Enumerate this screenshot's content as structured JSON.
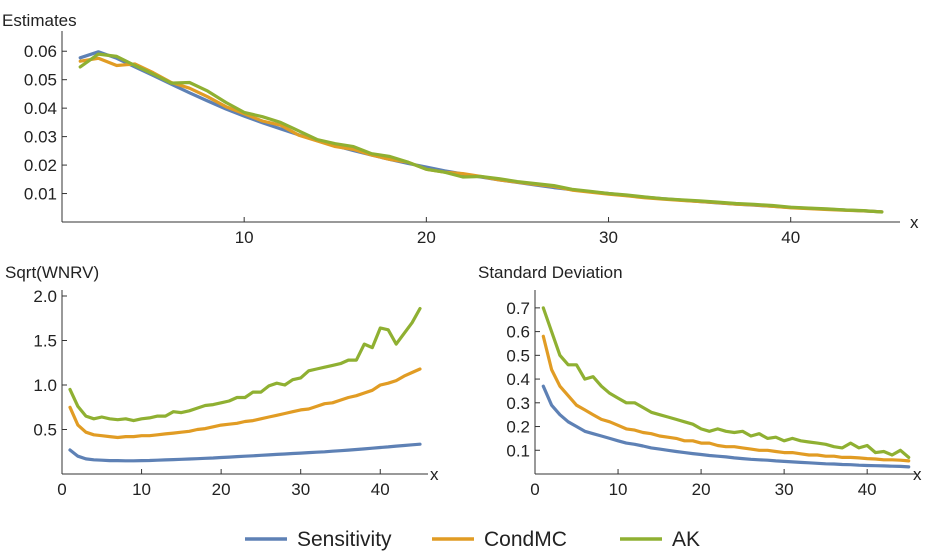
{
  "colors": {
    "Sensitivity": "#5E81B5",
    "CondMC": "#E19C24",
    "AK": "#8FB032"
  },
  "legend": [
    {
      "name": "Sensitivity",
      "color": "#5E81B5"
    },
    {
      "name": "CondMC",
      "color": "#E19C24"
    },
    {
      "name": "AK",
      "color": "#8FB032"
    }
  ],
  "chart_data": [
    {
      "type": "line",
      "title": "Estimates",
      "xlabel": "x",
      "ylabel": "",
      "xlim": [
        0,
        46
      ],
      "ylim": [
        0,
        0.065
      ],
      "xticks": [
        10,
        20,
        30,
        40
      ],
      "yticks": [
        0.01,
        0.02,
        0.03,
        0.04,
        0.05,
        0.06
      ],
      "ytick_labels": [
        "0.01",
        "0.02",
        "0.03",
        "0.04",
        "0.05",
        "0.06"
      ],
      "x": [
        1,
        2,
        3,
        4,
        5,
        6,
        7,
        8,
        9,
        10,
        11,
        12,
        13,
        14,
        15,
        16,
        17,
        18,
        19,
        20,
        21,
        22,
        23,
        24,
        25,
        26,
        27,
        28,
        29,
        30,
        31,
        32,
        33,
        34,
        35,
        36,
        37,
        38,
        39,
        40,
        41,
        42,
        43,
        44,
        45
      ],
      "series": [
        {
          "name": "Sensitivity",
          "values": [
            0.0577,
            0.0598,
            0.0575,
            0.0545,
            0.0515,
            0.0484,
            0.0454,
            0.0425,
            0.0397,
            0.0372,
            0.0349,
            0.0327,
            0.0306,
            0.0286,
            0.0268,
            0.0251,
            0.0235,
            0.022,
            0.0206,
            0.0193,
            0.018,
            0.0169,
            0.0158,
            0.0148,
            0.0139,
            0.013,
            0.0121,
            0.0114,
            0.0106,
            0.01,
            0.0093,
            0.0087,
            0.0082,
            0.0077,
            0.0072,
            0.0067,
            0.0063,
            0.0059,
            0.0055,
            0.0051,
            0.0048,
            0.0045,
            0.0042,
            0.0039,
            0.0036
          ]
        },
        {
          "name": "CondMC",
          "values": [
            0.0565,
            0.0575,
            0.055,
            0.0555,
            0.0525,
            0.049,
            0.047,
            0.044,
            0.0405,
            0.038,
            0.0355,
            0.034,
            0.0305,
            0.0285,
            0.0265,
            0.0255,
            0.0235,
            0.022,
            0.021,
            0.0185,
            0.0175,
            0.017,
            0.016,
            0.0148,
            0.014,
            0.0132,
            0.0125,
            0.0112,
            0.0105,
            0.0098,
            0.0092,
            0.0085,
            0.008,
            0.0076,
            0.0072,
            0.0068,
            0.0063,
            0.006,
            0.0055,
            0.005,
            0.0047,
            0.0044,
            0.0041,
            0.0039,
            0.0036
          ]
        },
        {
          "name": "AK",
          "values": [
            0.0545,
            0.059,
            0.0582,
            0.055,
            0.052,
            0.0488,
            0.049,
            0.046,
            0.042,
            0.0385,
            0.037,
            0.035,
            0.032,
            0.029,
            0.0275,
            0.0265,
            0.024,
            0.023,
            0.021,
            0.0185,
            0.0175,
            0.0158,
            0.016,
            0.0152,
            0.0142,
            0.0135,
            0.0128,
            0.0115,
            0.0108,
            0.01,
            0.0095,
            0.0088,
            0.0082,
            0.0078,
            0.0074,
            0.007,
            0.0065,
            0.0062,
            0.0058,
            0.0052,
            0.0049,
            0.0046,
            0.0042,
            0.004,
            0.0035
          ]
        }
      ]
    },
    {
      "type": "line",
      "title": "Sqrt(WNRV)",
      "xlabel": "x",
      "ylabel": "",
      "xlim": [
        0,
        46
      ],
      "ylim": [
        0,
        2.0
      ],
      "xticks": [
        0,
        10,
        20,
        30,
        40
      ],
      "yticks": [
        0.5,
        1.0,
        1.5,
        2.0
      ],
      "ytick_labels": [
        "0.5",
        "1.0",
        "1.5",
        "2.0"
      ],
      "x": [
        1,
        2,
        3,
        4,
        5,
        6,
        7,
        8,
        9,
        10,
        11,
        12,
        13,
        14,
        15,
        16,
        17,
        18,
        19,
        20,
        21,
        22,
        23,
        24,
        25,
        26,
        27,
        28,
        29,
        30,
        31,
        32,
        33,
        34,
        35,
        36,
        37,
        38,
        39,
        40,
        41,
        42,
        43,
        44,
        45
      ],
      "series": [
        {
          "name": "Sensitivity",
          "values": [
            0.27,
            0.2,
            0.17,
            0.16,
            0.155,
            0.15,
            0.15,
            0.148,
            0.148,
            0.15,
            0.152,
            0.155,
            0.158,
            0.162,
            0.165,
            0.168,
            0.172,
            0.176,
            0.18,
            0.185,
            0.19,
            0.195,
            0.2,
            0.205,
            0.21,
            0.215,
            0.22,
            0.225,
            0.23,
            0.235,
            0.24,
            0.245,
            0.25,
            0.256,
            0.262,
            0.268,
            0.275,
            0.282,
            0.29,
            0.298,
            0.305,
            0.313,
            0.32,
            0.328,
            0.335
          ]
        },
        {
          "name": "CondMC",
          "values": [
            0.75,
            0.55,
            0.47,
            0.44,
            0.43,
            0.42,
            0.41,
            0.42,
            0.42,
            0.43,
            0.43,
            0.44,
            0.45,
            0.46,
            0.47,
            0.48,
            0.5,
            0.51,
            0.53,
            0.55,
            0.56,
            0.57,
            0.59,
            0.6,
            0.62,
            0.64,
            0.66,
            0.68,
            0.7,
            0.72,
            0.73,
            0.76,
            0.79,
            0.8,
            0.83,
            0.86,
            0.88,
            0.91,
            0.94,
            1.0,
            1.02,
            1.05,
            1.1,
            1.14,
            1.18
          ]
        },
        {
          "name": "AK",
          "values": [
            0.95,
            0.76,
            0.65,
            0.62,
            0.64,
            0.62,
            0.61,
            0.62,
            0.6,
            0.62,
            0.63,
            0.65,
            0.65,
            0.7,
            0.69,
            0.71,
            0.74,
            0.77,
            0.78,
            0.8,
            0.82,
            0.86,
            0.86,
            0.92,
            0.92,
            0.99,
            1.02,
            1.0,
            1.06,
            1.08,
            1.16,
            1.18,
            1.2,
            1.22,
            1.24,
            1.28,
            1.28,
            1.46,
            1.42,
            1.64,
            1.62,
            1.46,
            1.58,
            1.7,
            1.86
          ]
        }
      ]
    },
    {
      "type": "line",
      "title": "Standard Deviation",
      "xlabel": "x",
      "ylabel": "",
      "xlim": [
        0,
        46
      ],
      "ylim": [
        0,
        0.75
      ],
      "xticks": [
        0,
        10,
        20,
        30,
        40
      ],
      "yticks": [
        0.1,
        0.2,
        0.3,
        0.4,
        0.5,
        0.6,
        0.7
      ],
      "ytick_labels": [
        "0.1",
        "0.2",
        "0.3",
        "0.4",
        "0.5",
        "0.6",
        "0.7"
      ],
      "x": [
        1,
        2,
        3,
        4,
        5,
        6,
        7,
        8,
        9,
        10,
        11,
        12,
        13,
        14,
        15,
        16,
        17,
        18,
        19,
        20,
        21,
        22,
        23,
        24,
        25,
        26,
        27,
        28,
        29,
        30,
        31,
        32,
        33,
        34,
        35,
        36,
        37,
        38,
        39,
        40,
        41,
        42,
        43,
        44,
        45
      ],
      "series": [
        {
          "name": "Sensitivity",
          "values": [
            0.37,
            0.29,
            0.25,
            0.22,
            0.2,
            0.18,
            0.17,
            0.16,
            0.15,
            0.14,
            0.13,
            0.125,
            0.118,
            0.11,
            0.105,
            0.1,
            0.095,
            0.09,
            0.086,
            0.082,
            0.078,
            0.075,
            0.072,
            0.068,
            0.065,
            0.062,
            0.06,
            0.058,
            0.055,
            0.053,
            0.051,
            0.049,
            0.047,
            0.045,
            0.043,
            0.042,
            0.04,
            0.039,
            0.037,
            0.036,
            0.035,
            0.034,
            0.033,
            0.032,
            0.03
          ]
        },
        {
          "name": "CondMC",
          "values": [
            0.58,
            0.44,
            0.37,
            0.33,
            0.29,
            0.27,
            0.25,
            0.23,
            0.22,
            0.205,
            0.19,
            0.185,
            0.175,
            0.17,
            0.16,
            0.155,
            0.15,
            0.14,
            0.14,
            0.13,
            0.13,
            0.12,
            0.115,
            0.115,
            0.11,
            0.105,
            0.1,
            0.1,
            0.095,
            0.09,
            0.09,
            0.085,
            0.08,
            0.08,
            0.075,
            0.075,
            0.07,
            0.07,
            0.068,
            0.065,
            0.063,
            0.06,
            0.06,
            0.058,
            0.055
          ]
        },
        {
          "name": "AK",
          "values": [
            0.7,
            0.6,
            0.5,
            0.46,
            0.46,
            0.4,
            0.41,
            0.37,
            0.34,
            0.32,
            0.3,
            0.3,
            0.28,
            0.26,
            0.25,
            0.24,
            0.23,
            0.22,
            0.21,
            0.19,
            0.18,
            0.19,
            0.18,
            0.175,
            0.18,
            0.16,
            0.17,
            0.15,
            0.155,
            0.14,
            0.15,
            0.14,
            0.135,
            0.13,
            0.125,
            0.115,
            0.11,
            0.13,
            0.11,
            0.12,
            0.09,
            0.095,
            0.08,
            0.1,
            0.07
          ]
        }
      ]
    }
  ]
}
